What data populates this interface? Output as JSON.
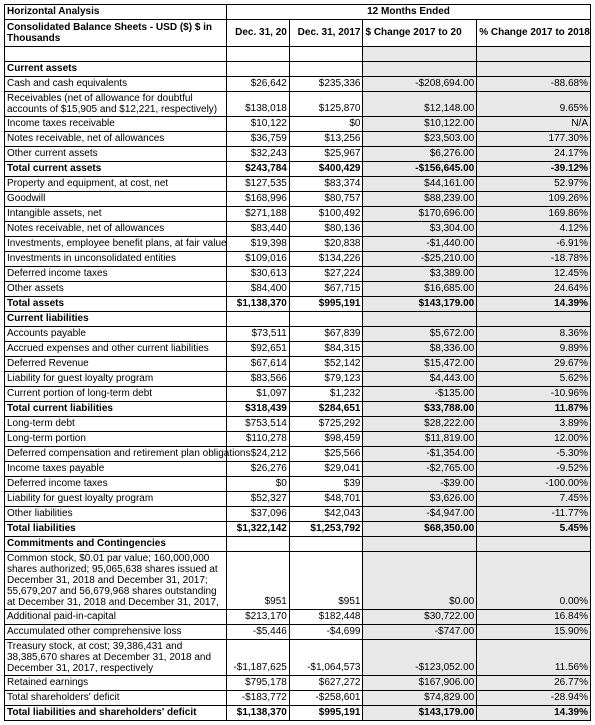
{
  "header": {
    "title1": "Horizontal Analysis",
    "title2": "Consolidated Balance Sheets - USD ($) $ in Thousands",
    "period": "12 Months Ended",
    "col_a": "Dec. 31, 20",
    "col_b": "Dec. 31, 2017",
    "col_c": "$ Change 2017 to 20",
    "col_d": "% Change 2017 to 2018"
  },
  "sections": [
    {
      "label": "Current assets",
      "rows": [
        {
          "label": "Cash and cash equivalents",
          "a": "$26,642",
          "b": "$235,336",
          "c": "-$208,694.00",
          "d": "-88.68%"
        },
        {
          "label": "Receivables (net of allowance for doubtful accounts of $15,905 and $12,221, respectively)",
          "a": "$138,018",
          "b": "$125,870",
          "c": "$12,148.00",
          "d": "9.65%",
          "wrap": true
        },
        {
          "label": "Income taxes receivable",
          "a": "$10,122",
          "b": "$0",
          "c": "$10,122.00",
          "d": "N/A"
        },
        {
          "label": "Notes receivable, net of allowances",
          "a": "$36,759",
          "b": "$13,256",
          "c": "$23,503.00",
          "d": "177.30%"
        },
        {
          "label": "Other current assets",
          "a": "$32,243",
          "b": "$25,967",
          "c": "$6,276.00",
          "d": "24.17%"
        },
        {
          "label": "Total current assets",
          "a": "$243,784",
          "b": "$400,429",
          "c": "-$156,645.00",
          "d": "-39.12%",
          "bold": true
        },
        {
          "label": "Property and equipment, at cost, net",
          "a": "$127,535",
          "b": "$83,374",
          "c": "$44,161.00",
          "d": "52.97%"
        },
        {
          "label": "Goodwill",
          "a": "$168,996",
          "b": "$80,757",
          "c": "$88,239.00",
          "d": "109.26%"
        },
        {
          "label": "Intangible assets, net",
          "a": "$271,188",
          "b": "$100,492",
          "c": "$170,696.00",
          "d": "169.86%"
        },
        {
          "label": "Notes receivable, net of allowances",
          "a": "$83,440",
          "b": "$80,136",
          "c": "$3,304.00",
          "d": "4.12%"
        },
        {
          "label": "Investments, employee benefit plans, at fair value",
          "a": "$19,398",
          "b": "$20,838",
          "c": "-$1,440.00",
          "d": "-6.91%"
        },
        {
          "label": "Investments in unconsolidated entities",
          "a": "$109,016",
          "b": "$134,226",
          "c": "-$25,210.00",
          "d": "-18.78%"
        },
        {
          "label": "Deferred income taxes",
          "a": "$30,613",
          "b": "$27,224",
          "c": "$3,389.00",
          "d": "12.45%"
        },
        {
          "label": "Other assets",
          "a": "$84,400",
          "b": "$67,715",
          "c": "$16,685.00",
          "d": "24.64%"
        },
        {
          "label": "Total assets",
          "a": "$1,138,370",
          "b": "$995,191",
          "c": "$143,179.00",
          "d": "14.39%",
          "bold": true
        }
      ]
    },
    {
      "label": "Current liabilities",
      "rows": [
        {
          "label": "Accounts payable",
          "a": "$73,511",
          "b": "$67,839",
          "c": "$5,672.00",
          "d": "8.36%"
        },
        {
          "label": "Accrued expenses and other current liabilities",
          "a": "$92,651",
          "b": "$84,315",
          "c": "$8,336.00",
          "d": "9.89%"
        },
        {
          "label": "Deferred Revenue",
          "a": "$67,614",
          "b": "$52,142",
          "c": "$15,472.00",
          "d": "29.67%"
        },
        {
          "label": "Liability for guest loyalty program",
          "a": "$83,566",
          "b": "$79,123",
          "c": "$4,443.00",
          "d": "5.62%"
        },
        {
          "label": "Current portion of long-term debt",
          "a": "$1,097",
          "b": "$1,232",
          "c": "-$135.00",
          "d": "-10.96%"
        },
        {
          "label": "Total current liabilities",
          "a": "$318,439",
          "b": "$284,651",
          "c": "$33,788.00",
          "d": "11.87%",
          "bold": true
        },
        {
          "label": "Long-term debt",
          "a": "$753,514",
          "b": "$725,292",
          "c": "$28,222.00",
          "d": "3.89%"
        },
        {
          "label": "Long-term portion",
          "a": "$110,278",
          "b": "$98,459",
          "c": "$11,819.00",
          "d": "12.00%"
        },
        {
          "label": "Deferred compensation and retirement plan obligations",
          "a": "$24,212",
          "b": "$25,566",
          "c": "-$1,354.00",
          "d": "-5.30%"
        },
        {
          "label": "Income taxes payable",
          "a": "$26,276",
          "b": "$29,041",
          "c": "-$2,765.00",
          "d": "-9.52%"
        },
        {
          "label": "Deferred income taxes",
          "a": "$0",
          "b": "$39",
          "c": "-$39.00",
          "d": "-100.00%"
        },
        {
          "label": "Liability for guest loyalty program",
          "a": "$52,327",
          "b": "$48,701",
          "c": "$3,626.00",
          "d": "7.45%"
        },
        {
          "label": "Other liabilities",
          "a": "$37,096",
          "b": "$42,043",
          "c": "-$4,947.00",
          "d": "-11.77%"
        },
        {
          "label": "Total liabilities",
          "a": "$1,322,142",
          "b": "$1,253,792",
          "c": "$68,350.00",
          "d": "5.45%",
          "bold": true
        }
      ]
    },
    {
      "label": "Commitments and Contingencies",
      "rows": [
        {
          "label": "Common stock, $0.01 par value; 160,000,000 shares authorized; 95,065,638 shares issued at December 31, 2018 and December 31, 2017; 55,679,207 and 56,679,968 shares outstanding at December 31, 2018 and December 31, 2017,",
          "a": "$951",
          "b": "$951",
          "c": "$0.00",
          "d": "0.00%",
          "wrap": true
        },
        {
          "label": "Additional paid-in-capital",
          "a": "$213,170",
          "b": "$182,448",
          "c": "$30,722.00",
          "d": "16.84%"
        },
        {
          "label": "Accumulated other comprehensive loss",
          "a": "-$5,446",
          "b": "-$4,699",
          "c": "-$747.00",
          "d": "15.90%"
        },
        {
          "label": "Treasury stock, at cost; 39,386,431 and 38,385,670 shares at December 31, 2018 and December 31, 2017, respectively",
          "a": "-$1,187,625",
          "b": "-$1,064,573",
          "c": "-$123,052.00",
          "d": "11.56%",
          "wrap": true
        },
        {
          "label": "Retained earnings",
          "a": "$795,178",
          "b": "$627,272",
          "c": "$167,906.00",
          "d": "26.77%"
        },
        {
          "label": "Total shareholders' deficit",
          "a": "-$183,772",
          "b": "-$258,601",
          "c": "$74,829.00",
          "d": "-28.94%"
        },
        {
          "label": "Total liabilities and shareholders' deficit",
          "a": "$1,138,370",
          "b": "$995,191",
          "c": "$143,179.00",
          "d": "14.39%",
          "bold": true
        }
      ]
    }
  ]
}
